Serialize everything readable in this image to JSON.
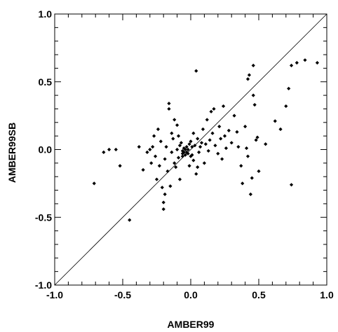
{
  "chart_data": {
    "type": "scatter",
    "title": "",
    "xlabel": "AMBER99",
    "ylabel": "AMBER99SB",
    "xlim": [
      -1.0,
      1.0
    ],
    "ylim": [
      -1.0,
      1.0
    ],
    "xticks": [
      "-1.0",
      "-0.5",
      "0.0",
      "0.5",
      "1.0"
    ],
    "yticks": [
      "-1.0",
      "-0.5",
      "0.0",
      "0.5",
      "1.0"
    ],
    "grid": false,
    "reference_line": "y = x",
    "marker": "diamond",
    "color": "#000000",
    "series": [
      {
        "points": [
          [
            -0.71,
            -0.25
          ],
          [
            -0.64,
            -0.02
          ],
          [
            -0.6,
            0.0
          ],
          [
            -0.55,
            0.0
          ],
          [
            -0.52,
            -0.12
          ],
          [
            -0.45,
            -0.52
          ],
          [
            -0.38,
            0.02
          ],
          [
            -0.35,
            -0.15
          ],
          [
            -0.32,
            -0.02
          ],
          [
            -0.3,
            0.0
          ],
          [
            -0.29,
            -0.1
          ],
          [
            -0.28,
            0.02
          ],
          [
            -0.27,
            0.1
          ],
          [
            -0.26,
            -0.05
          ],
          [
            -0.25,
            -0.22
          ],
          [
            -0.24,
            0.15
          ],
          [
            -0.23,
            -0.12
          ],
          [
            -0.22,
            0.06
          ],
          [
            -0.21,
            -0.28
          ],
          [
            -0.2,
            -0.39
          ],
          [
            -0.2,
            -0.44
          ],
          [
            -0.19,
            -0.33
          ],
          [
            -0.19,
            -0.07
          ],
          [
            -0.18,
            0.02
          ],
          [
            -0.17,
            -0.16
          ],
          [
            -0.16,
            0.3
          ],
          [
            -0.16,
            0.34
          ],
          [
            -0.15,
            -0.27
          ],
          [
            -0.14,
            -0.02
          ],
          [
            -0.13,
            0.08
          ],
          [
            -0.12,
            0.22
          ],
          [
            -0.12,
            -0.1
          ],
          [
            -0.11,
            -0.13
          ],
          [
            -0.1,
            0.0
          ],
          [
            -0.1,
            0.18
          ],
          [
            -0.09,
            -0.06
          ],
          [
            -0.08,
            0.03
          ],
          [
            -0.08,
            -0.22
          ],
          [
            -0.07,
            0.05
          ],
          [
            -0.06,
            -0.03
          ],
          [
            -0.06,
            -0.01
          ],
          [
            -0.05,
            -0.02
          ],
          [
            -0.05,
            0.01
          ],
          [
            -0.04,
            -0.04
          ],
          [
            -0.04,
            0.0
          ],
          [
            -0.03,
            -0.02
          ],
          [
            -0.03,
            0.02
          ],
          [
            -0.02,
            -0.03
          ],
          [
            -0.02,
            0.0
          ],
          [
            -0.01,
            0.04
          ],
          [
            -0.01,
            -0.12
          ],
          [
            0.0,
            0.06
          ],
          [
            0.0,
            -0.05
          ],
          [
            0.01,
            0.02
          ],
          [
            0.02,
            -0.08
          ],
          [
            0.02,
            0.12
          ],
          [
            0.03,
            0.03
          ],
          [
            0.04,
            -0.18
          ],
          [
            0.04,
            0.58
          ],
          [
            0.05,
            0.08
          ],
          [
            0.06,
            -0.02
          ],
          [
            0.07,
            0.02
          ],
          [
            0.08,
            0.05
          ],
          [
            0.09,
            0.15
          ],
          [
            0.1,
            -0.1
          ],
          [
            0.11,
            0.04
          ],
          [
            0.12,
            0.22
          ],
          [
            0.13,
            -0.01
          ],
          [
            0.14,
            0.07
          ],
          [
            0.15,
            0.28
          ],
          [
            0.16,
            0.12
          ],
          [
            0.17,
            0.3
          ],
          [
            0.18,
            0.03
          ],
          [
            0.2,
            -0.03
          ],
          [
            0.21,
            0.17
          ],
          [
            0.22,
            0.08
          ],
          [
            0.23,
            -0.07
          ],
          [
            0.24,
            0.32
          ],
          [
            0.25,
            0.1
          ],
          [
            0.26,
            0.01
          ],
          [
            0.28,
            0.14
          ],
          [
            0.3,
            0.05
          ],
          [
            0.32,
            0.25
          ],
          [
            0.34,
            0.13
          ],
          [
            0.35,
            0.02
          ],
          [
            0.37,
            -0.12
          ],
          [
            0.38,
            -0.25
          ],
          [
            0.4,
            0.17
          ],
          [
            0.41,
            0.01
          ],
          [
            0.42,
            -0.05
          ],
          [
            0.42,
            0.52
          ],
          [
            0.43,
            0.55
          ],
          [
            0.44,
            -0.33
          ],
          [
            0.45,
            -0.21
          ],
          [
            0.46,
            0.4
          ],
          [
            0.46,
            0.62
          ],
          [
            0.47,
            0.33
          ],
          [
            0.48,
            0.07
          ],
          [
            0.49,
            0.09
          ],
          [
            0.5,
            -0.16
          ],
          [
            0.55,
            0.04
          ],
          [
            0.62,
            0.21
          ],
          [
            0.66,
            0.15
          ],
          [
            0.7,
            0.32
          ],
          [
            0.72,
            0.45
          ],
          [
            0.74,
            -0.26
          ],
          [
            0.74,
            0.62
          ],
          [
            0.78,
            0.64
          ],
          [
            0.84,
            0.66
          ],
          [
            0.93,
            0.64
          ],
          [
            -0.06,
            -0.05
          ],
          [
            0.01,
            -0.04
          ],
          [
            -0.09,
            0.1
          ],
          [
            0.05,
            -0.13
          ],
          [
            -0.14,
            0.12
          ]
        ]
      }
    ]
  }
}
